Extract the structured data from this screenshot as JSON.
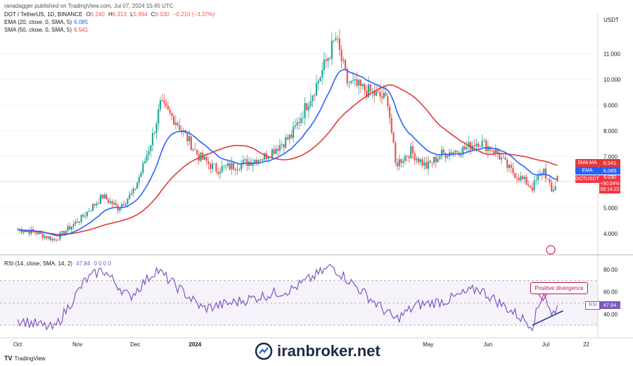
{
  "header": {
    "published": "ranadagger published on TradingView.com, Jul 07, 2024 15:45 UTC",
    "symbol": "DOT / TetherUS, 1D, BINANCE",
    "ohlc": {
      "o_label": "O",
      "o": "6.240",
      "h_label": "H",
      "h": "6.313",
      "l_label": "L",
      "l": "5.994",
      "c_label": "C",
      "c": "6.030",
      "change": "−0.210 (−3.37%)"
    },
    "ema_label": "EMA (20, close, 0, SMA, 5)",
    "ema_value": "6.085",
    "sma_label": "SMA (50, close, 0, SMA, 5)",
    "sma_value": "6.541",
    "currency": "USDT"
  },
  "price_axis": [
    "11.000",
    "10.000",
    "9.000",
    "8.000",
    "7.000",
    "5.000",
    "4.000"
  ],
  "rsi_axis": [
    "80.00",
    "60.00",
    "40.00"
  ],
  "x_axis": [
    "Oct",
    "Nov",
    "Dec",
    "2024",
    "May",
    "Jun",
    "Jul",
    "22"
  ],
  "tags": {
    "sma_tag": "SMA:MA",
    "sma_val": "6.541",
    "ema_tag": "EMA",
    "ema_val": "6.085",
    "sym_tag": "DOTUSDT",
    "price": "6.030",
    "pct": "+90.04%",
    "countdown": "08:14:22",
    "rsi_tag": "RSI",
    "rsi_val": "47.84"
  },
  "rsi_header": {
    "label": "RSI (14, close, SMA, 14, 2)",
    "value": "47.84",
    "extra": "0 0 0 0"
  },
  "annotation": "Positive divergence",
  "footer": "TradingView",
  "watermark": "iranbroker.net",
  "colors": {
    "up": "#26a69a",
    "down": "#ef5350",
    "ema": "#2962ff",
    "sma": "#e53935",
    "rsi": "#7e57c2",
    "divergence": "#2a3b8f"
  },
  "chart_data": [
    {
      "type": "candlestick",
      "title": "DOT / TetherUS, 1D, BINANCE",
      "y_unit": "USDT",
      "ylim": [
        3.5,
        12.0
      ],
      "close_series_anchors": [
        {
          "x": "2023-10-01",
          "y": 4.15
        },
        {
          "x": "2023-10-10",
          "y": 4.05
        },
        {
          "x": "2023-10-20",
          "y": 3.75
        },
        {
          "x": "2023-10-25",
          "y": 4.05
        },
        {
          "x": "2023-11-03",
          "y": 4.6
        },
        {
          "x": "2023-11-14",
          "y": 5.45
        },
        {
          "x": "2023-11-22",
          "y": 5.0
        },
        {
          "x": "2023-11-30",
          "y": 5.6
        },
        {
          "x": "2023-12-05",
          "y": 6.6
        },
        {
          "x": "2023-12-10",
          "y": 7.8
        },
        {
          "x": "2023-12-14",
          "y": 9.0
        },
        {
          "x": "2023-12-22",
          "y": 8.4
        },
        {
          "x": "2024-01-03",
          "y": 7.0
        },
        {
          "x": "2024-01-12",
          "y": 6.5
        },
        {
          "x": "2024-01-25",
          "y": 6.7
        },
        {
          "x": "2024-02-06",
          "y": 7.0
        },
        {
          "x": "2024-02-20",
          "y": 7.8
        },
        {
          "x": "2024-03-04",
          "y": 9.8
        },
        {
          "x": "2024-03-14",
          "y": 11.6
        },
        {
          "x": "2024-03-20",
          "y": 9.9
        },
        {
          "x": "2024-04-01",
          "y": 9.5
        },
        {
          "x": "2024-04-10",
          "y": 9.2
        },
        {
          "x": "2024-04-14",
          "y": 6.7
        },
        {
          "x": "2024-04-22",
          "y": 7.2
        },
        {
          "x": "2024-04-30",
          "y": 6.6
        },
        {
          "x": "2024-05-08",
          "y": 7.1
        },
        {
          "x": "2024-05-20",
          "y": 7.3
        },
        {
          "x": "2024-05-27",
          "y": 7.6
        },
        {
          "x": "2024-06-05",
          "y": 7.2
        },
        {
          "x": "2024-06-12",
          "y": 6.5
        },
        {
          "x": "2024-06-24",
          "y": 5.8
        },
        {
          "x": "2024-06-30",
          "y": 6.5
        },
        {
          "x": "2024-07-04",
          "y": 5.6
        },
        {
          "x": "2024-07-07",
          "y": 6.03
        }
      ],
      "last_bar": {
        "open": 6.24,
        "high": 6.313,
        "low": 5.994,
        "close": 6.03
      },
      "series": [
        {
          "name": "EMA (20, close, 0, SMA, 5)",
          "last": 6.085
        },
        {
          "name": "SMA (50, close, 0, SMA, 5)",
          "last": 6.541
        }
      ],
      "horizontal_line": 6.03
    },
    {
      "type": "line",
      "title": "RSI (14, close, SMA, 14, 2)",
      "ylim": [
        20,
        90
      ],
      "band": [
        30,
        70
      ],
      "values_anchors": [
        {
          "x": "2023-10-01",
          "y": 35
        },
        {
          "x": "2023-10-20",
          "y": 27
        },
        {
          "x": "2023-11-05",
          "y": 70
        },
        {
          "x": "2023-11-14",
          "y": 80
        },
        {
          "x": "2023-11-28",
          "y": 55
        },
        {
          "x": "2023-12-12",
          "y": 80
        },
        {
          "x": "2024-01-05",
          "y": 45
        },
        {
          "x": "2024-01-20",
          "y": 50
        },
        {
          "x": "2024-02-20",
          "y": 62
        },
        {
          "x": "2024-03-12",
          "y": 83
        },
        {
          "x": "2024-04-14",
          "y": 35
        },
        {
          "x": "2024-04-25",
          "y": 48
        },
        {
          "x": "2024-05-10",
          "y": 52
        },
        {
          "x": "2024-05-27",
          "y": 63
        },
        {
          "x": "2024-06-24",
          "y": 30
        },
        {
          "x": "2024-06-30",
          "y": 61
        },
        {
          "x": "2024-07-04",
          "y": 38
        },
        {
          "x": "2024-07-07",
          "y": 47.84
        }
      ],
      "divergence_line": [
        {
          "x": "2024-06-24",
          "y": 30
        },
        {
          "x": "2024-07-10",
          "y": 43
        }
      ]
    }
  ]
}
